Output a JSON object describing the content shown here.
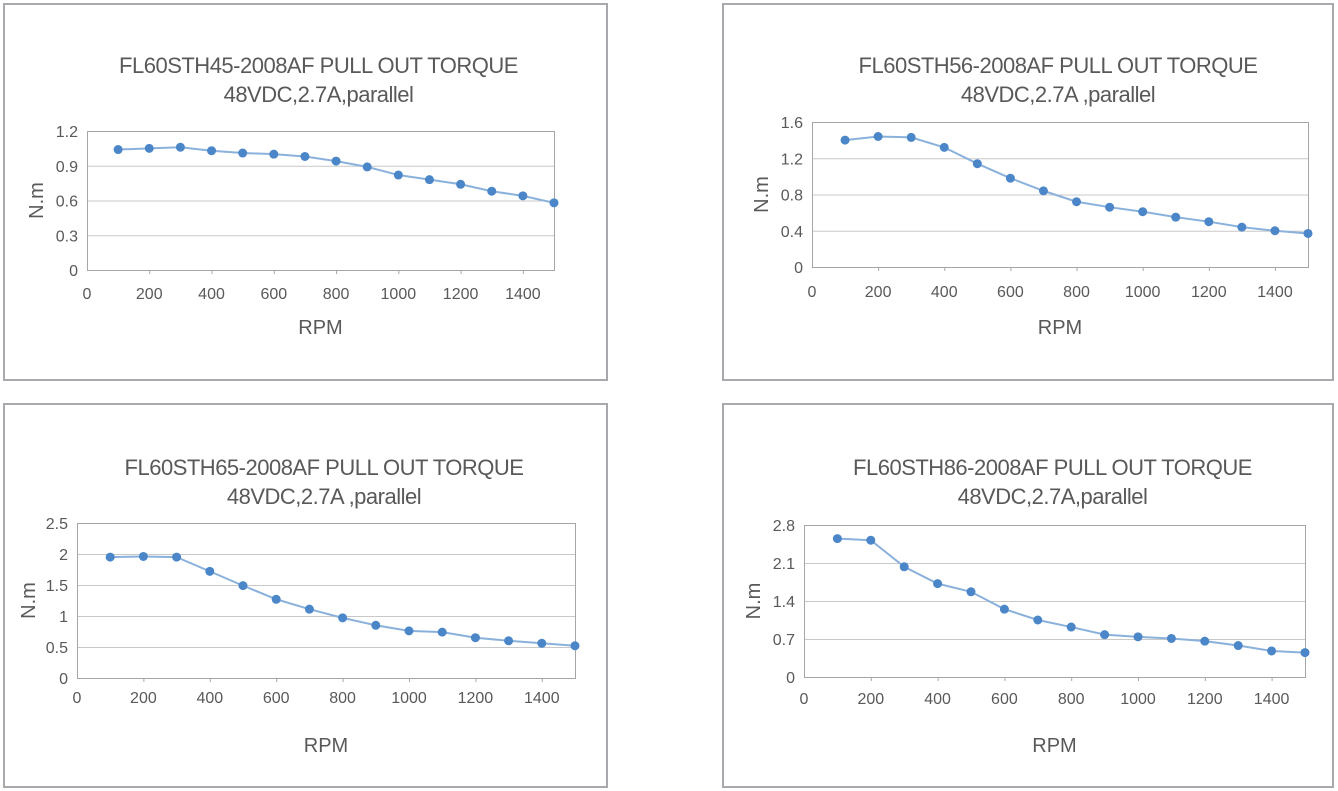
{
  "colors": {
    "marker": "#4a86c8",
    "line": "#8ab1dc",
    "grid": "#c8c8c8",
    "plot_border": "#a6a6a6",
    "panel_border": "#a9a9ad",
    "label_text": "#595959"
  },
  "chart_data": [
    {
      "type": "line",
      "title": "FL60STH45-2008AF PULL OUT TORQUE",
      "subtitle": "48VDC,2.7A,parallel",
      "xlabel": "RPM",
      "ylabel": "N.m",
      "x": [
        100,
        200,
        300,
        400,
        500,
        600,
        700,
        800,
        900,
        1000,
        1100,
        1200,
        1300,
        1400,
        1500
      ],
      "values": [
        1.04,
        1.05,
        1.06,
        1.03,
        1.01,
        1.0,
        0.98,
        0.94,
        0.89,
        0.82,
        0.78,
        0.74,
        0.68,
        0.64,
        0.58
      ],
      "xlim": [
        0,
        1500
      ],
      "ylim": [
        0,
        1.2
      ],
      "x_ticks": [
        0,
        200,
        400,
        600,
        800,
        1000,
        1200,
        1400
      ],
      "x_tick_labels": [
        "0",
        "200",
        "400",
        "600",
        "800",
        "1000",
        "1200",
        "1400"
      ],
      "y_ticks": [
        0,
        0.3,
        0.6,
        0.9,
        1.2
      ],
      "y_tick_labels": [
        "0",
        "0.3",
        "0.6",
        "0.9",
        "1.2"
      ],
      "grid": true,
      "legend": false
    },
    {
      "type": "line",
      "title": "FL60STH56-2008AF PULL OUT TORQUE",
      "subtitle": "48VDC,2.7A ,parallel",
      "xlabel": "RPM",
      "ylabel": "N.m",
      "x": [
        100,
        200,
        300,
        400,
        500,
        600,
        700,
        800,
        900,
        1000,
        1100,
        1200,
        1300,
        1400,
        1500
      ],
      "values": [
        1.4,
        1.44,
        1.43,
        1.32,
        1.14,
        0.98,
        0.84,
        0.72,
        0.66,
        0.61,
        0.55,
        0.5,
        0.44,
        0.4,
        0.37
      ],
      "xlim": [
        0,
        1500
      ],
      "ylim": [
        0,
        1.6
      ],
      "x_ticks": [
        0,
        200,
        400,
        600,
        800,
        1000,
        1200,
        1400
      ],
      "x_tick_labels": [
        "0",
        "200",
        "400",
        "600",
        "800",
        "1000",
        "1200",
        "1400"
      ],
      "y_ticks": [
        0,
        0.4,
        0.8,
        1.2,
        1.6
      ],
      "y_tick_labels": [
        "0",
        "0.4",
        "0.8",
        "1.2",
        "1.6"
      ],
      "grid": true,
      "legend": false
    },
    {
      "type": "line",
      "title": "FL60STH65-2008AF PULL OUT TORQUE",
      "subtitle": "48VDC,2.7A ,parallel",
      "xlabel": "RPM",
      "ylabel": "N.m",
      "x": [
        100,
        200,
        300,
        400,
        500,
        600,
        700,
        800,
        900,
        1000,
        1100,
        1200,
        1300,
        1400,
        1500
      ],
      "values": [
        1.95,
        1.96,
        1.95,
        1.72,
        1.49,
        1.27,
        1.11,
        0.97,
        0.85,
        0.76,
        0.74,
        0.65,
        0.6,
        0.56,
        0.52
      ],
      "xlim": [
        0,
        1500
      ],
      "ylim": [
        0,
        2.5
      ],
      "x_ticks": [
        0,
        200,
        400,
        600,
        800,
        1000,
        1200,
        1400
      ],
      "x_tick_labels": [
        "0",
        "200",
        "400",
        "600",
        "800",
        "1000",
        "1200",
        "1400"
      ],
      "y_ticks": [
        0,
        0.5,
        1,
        1.5,
        2,
        2.5
      ],
      "y_tick_labels": [
        "0",
        "0.5",
        "1",
        "1.5",
        "2",
        "2.5"
      ],
      "grid": true,
      "legend": false
    },
    {
      "type": "line",
      "title": "FL60STH86-2008AF PULL OUT TORQUE",
      "subtitle": "48VDC,2.7A,parallel",
      "xlabel": "RPM",
      "ylabel": "N.m",
      "x": [
        100,
        200,
        300,
        400,
        500,
        600,
        700,
        800,
        900,
        1000,
        1100,
        1200,
        1300,
        1400,
        1500
      ],
      "values": [
        2.55,
        2.52,
        2.03,
        1.72,
        1.57,
        1.25,
        1.05,
        0.92,
        0.78,
        0.74,
        0.71,
        0.66,
        0.58,
        0.48,
        0.45
      ],
      "xlim": [
        0,
        1500
      ],
      "ylim": [
        0,
        2.8
      ],
      "x_ticks": [
        0,
        200,
        400,
        600,
        800,
        1000,
        1200,
        1400
      ],
      "x_tick_labels": [
        "0",
        "200",
        "400",
        "600",
        "800",
        "1000",
        "1200",
        "1400"
      ],
      "y_ticks": [
        0,
        0.7,
        1.4,
        2.1,
        2.8
      ],
      "y_tick_labels": [
        "0",
        "0.7",
        "1.4",
        "2.1",
        "2.8"
      ],
      "grid": true,
      "legend": false
    }
  ]
}
